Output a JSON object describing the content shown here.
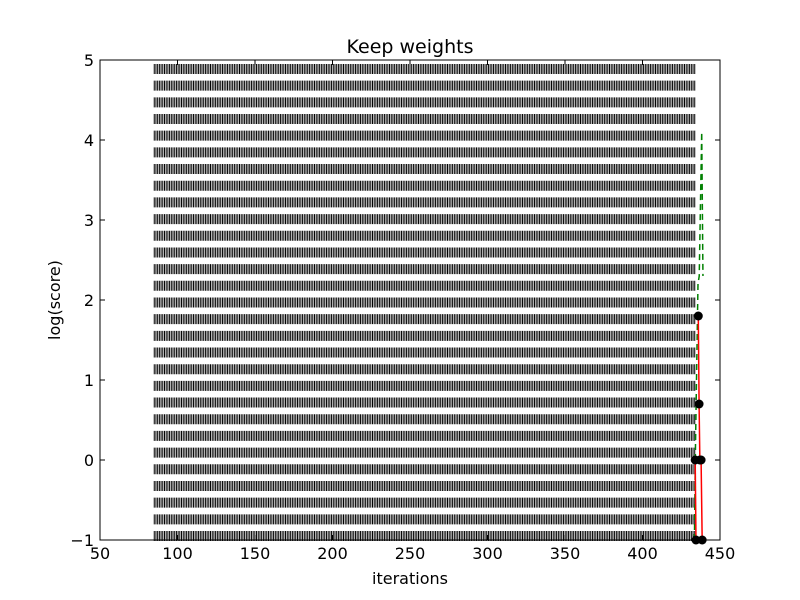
{
  "chart_data": {
    "type": "line",
    "title": "Keep weights",
    "xlabel": "iterations",
    "ylabel": "log(score)",
    "xlim": [
      50,
      450
    ],
    "ylim": [
      -1,
      5
    ],
    "xticks": [
      "50",
      "100",
      "150",
      "200",
      "250",
      "300",
      "350",
      "400",
      "450"
    ],
    "yticks": [
      "−1",
      "0",
      "1",
      "2",
      "3",
      "4",
      "5"
    ],
    "grid": false,
    "legend": "none",
    "background_marks": {
      "x_start": 85,
      "x_end": 434,
      "x_step": 1.1,
      "y_start": -0.95,
      "y_end": 4.9,
      "y_step": 0.2085,
      "color": "#000000"
    },
    "series": [
      {
        "style": "dashed",
        "color": "#008000",
        "x": [
          433.5,
          434.2,
          435,
          435.8,
          436.6,
          437.4,
          438.2,
          439
        ],
        "y": [
          -1,
          0.2,
          1.2,
          2.2,
          2.3,
          3.2,
          4.1,
          2.3
        ]
      },
      {
        "style": "solid",
        "color": "#ff0000",
        "markers": true,
        "marker_color": "#000000",
        "x": [
          436,
          436.5,
          437,
          437.8,
          438.5
        ],
        "y": [
          1.8,
          0.7,
          0.0,
          0.0,
          -1.0
        ]
      },
      {
        "style": "solid",
        "color": "#ff0000",
        "markers": true,
        "marker_color": "#000000",
        "x": [
          434,
          434.5
        ],
        "y": [
          0.0,
          -1.0
        ]
      }
    ]
  }
}
